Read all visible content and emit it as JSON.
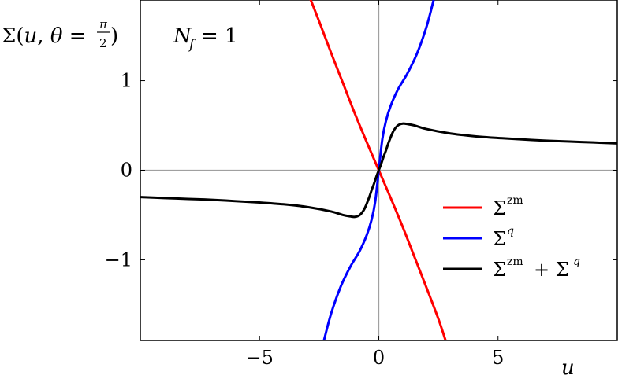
{
  "chart_data": {
    "type": "line",
    "title": "",
    "ylabel": "Σ(u, θ = π/2)",
    "xlabel": "u",
    "annotation": "N_f = 1",
    "xlim": [
      -10,
      10
    ],
    "ylim": [
      -1.9,
      1.9
    ],
    "x_ticks": [
      -5,
      0,
      5
    ],
    "x_tick_labels": [
      "−5",
      "0",
      "5"
    ],
    "y_ticks": [
      -1,
      0,
      1
    ],
    "y_tick_labels": [
      "−1",
      "0",
      "1"
    ],
    "grid": false,
    "zero_axes": true,
    "legend_position": "lower-right",
    "series": [
      {
        "name": "Σzm",
        "color": "#ff0000",
        "x": [
          -3.0,
          -2.5,
          -2.0,
          -1.5,
          -1.0,
          -0.5,
          0.0,
          0.5,
          1.0,
          1.5,
          2.0,
          2.5,
          2.8
        ],
        "y": [
          2.0,
          1.66,
          1.31,
          0.97,
          0.63,
          0.31,
          0.0,
          -0.31,
          -0.63,
          -0.97,
          -1.31,
          -1.66,
          -1.9
        ]
      },
      {
        "name": "Σq",
        "color": "#0000ff",
        "x": [
          -2.3,
          -2.0,
          -1.6,
          -1.2,
          -0.8,
          -0.5,
          -0.3,
          -0.15,
          0.0,
          0.15,
          0.3,
          0.5,
          0.8,
          1.2,
          1.6,
          2.0,
          2.3
        ],
        "y": [
          -1.9,
          -1.6,
          -1.3,
          -1.08,
          -0.9,
          -0.72,
          -0.55,
          -0.35,
          0.0,
          0.35,
          0.55,
          0.72,
          0.9,
          1.08,
          1.3,
          1.6,
          1.9
        ]
      },
      {
        "name": "Σzm + Σq",
        "color": "#000000",
        "x": [
          -10,
          -9,
          -8,
          -7,
          -6,
          -5,
          -4,
          -3,
          -2,
          -1.5,
          -1.2,
          -1.0,
          -0.8,
          -0.6,
          -0.4,
          -0.3,
          -0.2,
          -0.1,
          0.0,
          0.1,
          0.2,
          0.3,
          0.4,
          0.6,
          0.8,
          1.0,
          1.2,
          1.5,
          2,
          3,
          4,
          5,
          6,
          7,
          8,
          9,
          10
        ],
        "y": [
          -0.3,
          -0.31,
          -0.32,
          -0.33,
          -0.345,
          -0.36,
          -0.38,
          -0.41,
          -0.46,
          -0.5,
          -0.515,
          -0.52,
          -0.5,
          -0.43,
          -0.3,
          -0.22,
          -0.15,
          -0.07,
          0.0,
          0.07,
          0.15,
          0.22,
          0.3,
          0.43,
          0.5,
          0.52,
          0.515,
          0.5,
          0.46,
          0.41,
          0.38,
          0.36,
          0.345,
          0.33,
          0.32,
          0.31,
          0.3
        ]
      }
    ]
  }
}
